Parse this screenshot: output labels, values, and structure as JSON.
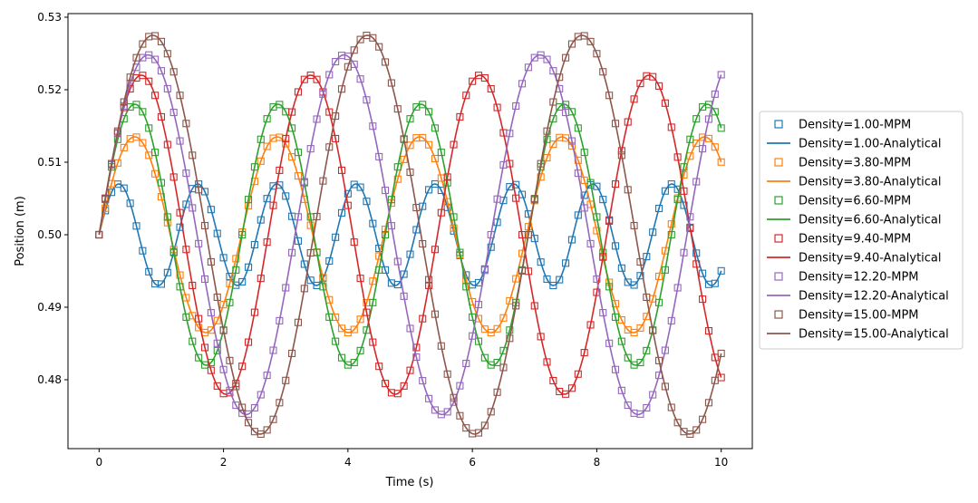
{
  "chart_data": {
    "type": "line",
    "title": "",
    "xlabel": "Time (s)",
    "ylabel": "Position (m)",
    "xlim": [
      -0.5,
      10.5
    ],
    "ylim": [
      0.4705,
      0.5305
    ],
    "x_ticks": [
      0,
      2,
      4,
      6,
      8,
      10
    ],
    "x_tick_labels": [
      "0",
      "2",
      "4",
      "6",
      "8",
      "10"
    ],
    "y_ticks": [
      0.48,
      0.49,
      0.5,
      0.51,
      0.52,
      0.53
    ],
    "y_tick_labels": [
      "0.48",
      "0.49",
      "0.50",
      "0.51",
      "0.52",
      "0.53"
    ],
    "grid": false,
    "legend_position": "right, outside plot",
    "model": "x(t) = 0.5 + amplitude * sin(2*pi*t / period)",
    "t_range": [
      0,
      10
    ],
    "mpm_sample_step": 0.1,
    "series": [
      {
        "density": "1.00",
        "amplitude": 0.007,
        "period": 1.27,
        "color": "#1f77b4"
      },
      {
        "density": "3.80",
        "amplitude": 0.0135,
        "period": 2.29,
        "color": "#ff7f0e"
      },
      {
        "density": "6.60",
        "amplitude": 0.018,
        "period": 2.3,
        "color": "#2ca02c"
      },
      {
        "density": "9.40",
        "amplitude": 0.022,
        "period": 2.72,
        "color": "#d62728"
      },
      {
        "density": "12.20",
        "amplitude": 0.0248,
        "period": 3.15,
        "color": "#9467bd"
      },
      {
        "density": "15.00",
        "amplitude": 0.0275,
        "period": 3.45,
        "color": "#8c564b"
      }
    ],
    "legend": [
      "Density=1.00-MPM",
      "Density=1.00-Analytical",
      "Density=3.80-MPM",
      "Density=3.80-Analytical",
      "Density=6.60-MPM",
      "Density=6.60-Analytical",
      "Density=9.40-MPM",
      "Density=9.40-Analytical",
      "Density=12.20-MPM",
      "Density=12.20-Analytical",
      "Density=15.00-MPM",
      "Density=15.00-Analytical"
    ]
  }
}
